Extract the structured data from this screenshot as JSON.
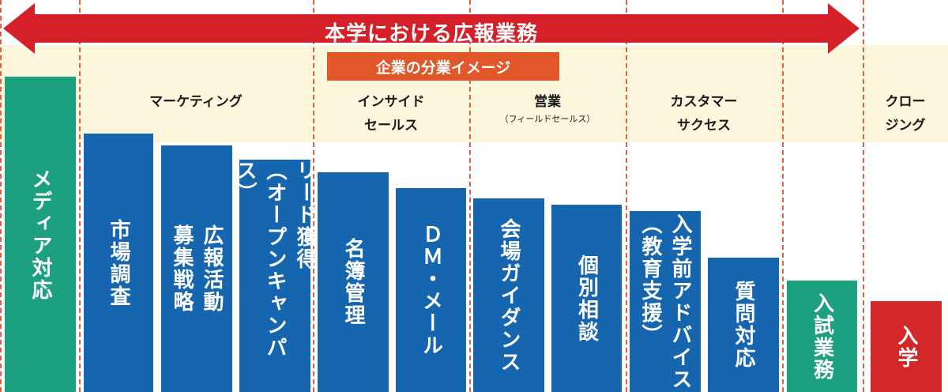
{
  "title": "本学における広報業務",
  "subtitle": "企業の分業イメージ",
  "phases": {
    "marketing": "マーケティング",
    "inside_sales_1": "インサイド",
    "inside_sales_2": "セールス",
    "sales": "営業",
    "sales_note": "（フィールドセールス）",
    "customer_success_1": "カスタマー",
    "customer_success_2": "サクセス",
    "closing_1": "クロー",
    "closing_2": "ジング"
  },
  "tasks": [
    {
      "id": "media",
      "label": "メディア対応",
      "color": "green"
    },
    {
      "id": "market-research",
      "label": "市場調査",
      "color": "blue"
    },
    {
      "id": "pr-strategy",
      "label": "広報活動\n募集戦略",
      "color": "blue"
    },
    {
      "id": "lead-acquisition",
      "label": "リード獲得\n（オープンキャンパス）",
      "color": "blue"
    },
    {
      "id": "list-management",
      "label": "名簿管理",
      "color": "blue"
    },
    {
      "id": "dm-mail",
      "label": "ＤＭ・メール",
      "color": "blue"
    },
    {
      "id": "venue-guidance",
      "label": "会場ガイダンス",
      "color": "blue"
    },
    {
      "id": "individual-consultation",
      "label": "個別相談",
      "color": "blue"
    },
    {
      "id": "pre-enrollment",
      "label": "入学前アドバイス\n（教育支援）",
      "color": "blue"
    },
    {
      "id": "inquiry-handling",
      "label": "質問対応",
      "color": "blue"
    },
    {
      "id": "admissions",
      "label": "入試業務",
      "color": "green"
    },
    {
      "id": "enrollment",
      "label": "入学",
      "color": "red"
    }
  ],
  "colors": {
    "arrow": "#d5202a",
    "subtitle_bg": "#e1572a",
    "band": "#fbf6dc",
    "blue": "#1566ae",
    "green": "#1ca080",
    "red": "#d2282a",
    "divider": "#e06040"
  }
}
